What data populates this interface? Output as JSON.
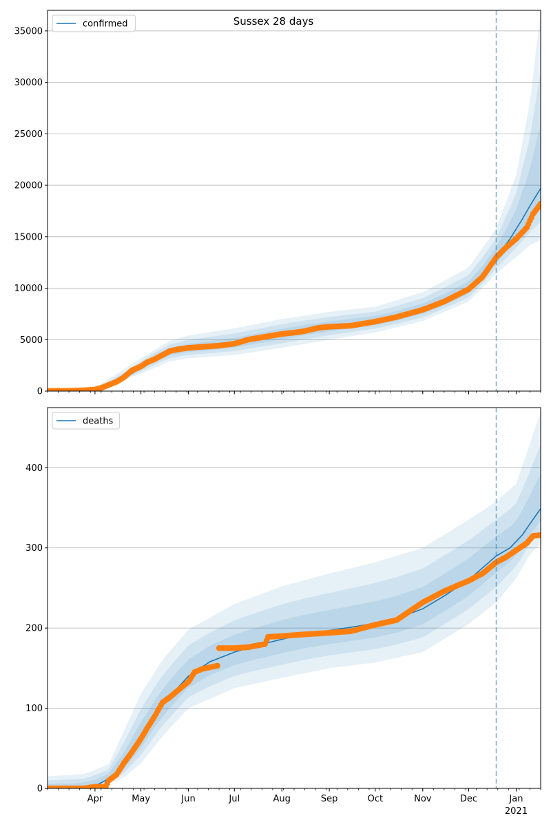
{
  "figure": {
    "title": "Sussex 28 days",
    "year_label": "2021"
  },
  "colors": {
    "model_line": "#1f77b4",
    "observed": "#ff7f0e",
    "band": "#1f77b4",
    "forecast_marker": "#1f77b4",
    "grid": "#b0b0b0"
  },
  "chart_data": [
    {
      "type": "line",
      "title": "",
      "legend": [
        "confirmed"
      ],
      "legend_position": "upper-left",
      "grid": "horizontal",
      "x_range": [
        "2020-03-01",
        "2021-01-17"
      ],
      "x_tick_labels": [
        "Apr",
        "May",
        "Jun",
        "Jul",
        "Aug",
        "Sep",
        "Oct",
        "Nov",
        "Dec",
        "Jan"
      ],
      "y_range": [
        0,
        37000
      ],
      "y_ticks": [
        0,
        5000,
        10000,
        15000,
        20000,
        25000,
        30000,
        35000
      ],
      "forecast_start": "2020-12-19",
      "series": [
        {
          "name": "confirmed",
          "style": "model-line",
          "x": [
            "2020-03-01",
            "2020-03-20",
            "2020-04-01",
            "2020-04-10",
            "2020-04-20",
            "2020-05-01",
            "2020-05-10",
            "2020-05-20",
            "2020-06-01",
            "2020-06-15",
            "2020-07-01",
            "2020-07-15",
            "2020-08-01",
            "2020-08-15",
            "2020-09-01",
            "2020-09-15",
            "2020-10-01",
            "2020-10-15",
            "2020-11-01",
            "2020-11-15",
            "2020-12-01",
            "2020-12-10",
            "2020-12-19",
            "2020-12-28",
            "2021-01-05",
            "2021-01-10",
            "2021-01-17"
          ],
          "y": [
            0,
            20,
            150,
            500,
            1200,
            2300,
            3200,
            3800,
            4150,
            4350,
            4650,
            5050,
            5500,
            5900,
            6250,
            6500,
            6800,
            7200,
            7900,
            8700,
            9900,
            11200,
            13000,
            14800,
            16700,
            18000,
            19700
          ]
        },
        {
          "name": "",
          "style": "observed-markers",
          "x": [
            "2020-03-01",
            "2020-03-15",
            "2020-03-25",
            "2020-04-01",
            "2020-04-05",
            "2020-04-10",
            "2020-04-15",
            "2020-04-20",
            "2020-04-25",
            "2020-05-01",
            "2020-05-05",
            "2020-05-10",
            "2020-05-15",
            "2020-05-20",
            "2020-05-25",
            "2020-06-01",
            "2020-06-10",
            "2020-06-20",
            "2020-07-01",
            "2020-07-10",
            "2020-07-20",
            "2020-08-01",
            "2020-08-10",
            "2020-08-15",
            "2020-08-25",
            "2020-09-01",
            "2020-09-15",
            "2020-10-01",
            "2020-10-15",
            "2020-11-01",
            "2020-11-15",
            "2020-12-01",
            "2020-12-10",
            "2020-12-19",
            "2020-12-25",
            "2021-01-01",
            "2021-01-08",
            "2021-01-12",
            "2021-01-17"
          ],
          "y": [
            20,
            30,
            80,
            150,
            300,
            600,
            900,
            1350,
            2000,
            2400,
            2800,
            3100,
            3500,
            3900,
            4050,
            4200,
            4300,
            4400,
            4600,
            5000,
            5250,
            5550,
            5700,
            5800,
            6150,
            6250,
            6350,
            6750,
            7200,
            7900,
            8700,
            9900,
            11100,
            13000,
            13900,
            14800,
            15900,
            17200,
            18200
          ]
        },
        {
          "name": "",
          "style": "uncertainty-band",
          "x": [
            "2020-03-01",
            "2020-04-01",
            "2020-05-01",
            "2020-05-20",
            "2020-06-01",
            "2020-07-01",
            "2020-08-01",
            "2020-09-01",
            "2020-10-01",
            "2020-11-01",
            "2020-12-01",
            "2020-12-19",
            "2021-01-01",
            "2021-01-10",
            "2021-01-17"
          ],
          "lower": [
            0,
            80,
            1700,
            2900,
            3200,
            3500,
            4200,
            5000,
            5700,
            6800,
            8700,
            11400,
            13000,
            14200,
            14700
          ],
          "upper": [
            0,
            300,
            3200,
            4900,
            5400,
            6100,
            7000,
            7700,
            8200,
            9600,
            12000,
            15800,
            21000,
            28000,
            37000
          ]
        }
      ]
    },
    {
      "type": "line",
      "title": "",
      "legend": [
        "deaths"
      ],
      "legend_position": "upper-left",
      "grid": "horizontal",
      "x_range": [
        "2020-03-01",
        "2021-01-17"
      ],
      "x_tick_labels": [
        "Apr",
        "May",
        "Jun",
        "Jul",
        "Aug",
        "Sep",
        "Oct",
        "Nov",
        "Dec",
        "Jan"
      ],
      "y_range": [
        0,
        475
      ],
      "y_ticks": [
        0,
        100,
        200,
        300,
        400
      ],
      "forecast_start": "2020-12-19",
      "series": [
        {
          "name": "deaths",
          "style": "model-line",
          "x": [
            "2020-03-01",
            "2020-03-20",
            "2020-04-01",
            "2020-04-10",
            "2020-04-20",
            "2020-05-01",
            "2020-05-10",
            "2020-05-20",
            "2020-06-01",
            "2020-06-15",
            "2020-07-01",
            "2020-07-15",
            "2020-08-01",
            "2020-08-15",
            "2020-09-01",
            "2020-09-15",
            "2020-10-01",
            "2020-10-15",
            "2020-11-01",
            "2020-11-15",
            "2020-12-01",
            "2020-12-10",
            "2020-12-19",
            "2020-12-28",
            "2021-01-05",
            "2021-01-10",
            "2021-01-17"
          ],
          "y": [
            0,
            0,
            3,
            12,
            30,
            62,
            90,
            115,
            140,
            158,
            170,
            178,
            186,
            192,
            197,
            201,
            206,
            212,
            224,
            240,
            260,
            275,
            290,
            300,
            316,
            330,
            349
          ]
        },
        {
          "name": "",
          "style": "observed-markers",
          "x": [
            "2020-03-01",
            "2020-03-15",
            "2020-03-25",
            "2020-04-01",
            "2020-04-08",
            "2020-04-10",
            "2020-04-15",
            "2020-04-20",
            "2020-04-25",
            "2020-05-01",
            "2020-05-05",
            "2020-05-10",
            "2020-05-15",
            "2020-05-20",
            "2020-05-25",
            "2020-06-01",
            "2020-06-05",
            "2020-06-10",
            "2020-06-15",
            "2020-06-20",
            "2020-06-21",
            "2020-07-01",
            "2020-07-10",
            "2020-07-15",
            "2020-07-21",
            "2020-07-23",
            "2020-08-01",
            "2020-08-15",
            "2020-09-01",
            "2020-09-15",
            "2020-10-01",
            "2020-10-15",
            "2020-11-01",
            "2020-11-15",
            "2020-12-01",
            "2020-12-10",
            "2020-12-19",
            "2020-12-25",
            "2021-01-01",
            "2021-01-08",
            "2021-01-12",
            "2021-01-17"
          ],
          "y": [
            0,
            0,
            0,
            2,
            2,
            10,
            17,
            32,
            45,
            62,
            75,
            90,
            107,
            114,
            122,
            133,
            145,
            149,
            151,
            153,
            175,
            175,
            176,
            178,
            180,
            189,
            190,
            192,
            194,
            196,
            204,
            210,
            232,
            246,
            259,
            268,
            282,
            288,
            297,
            306,
            315,
            316
          ]
        },
        {
          "name": "",
          "style": "uncertainty-band",
          "x": [
            "2020-03-01",
            "2020-03-25",
            "2020-04-10",
            "2020-04-20",
            "2020-05-01",
            "2020-05-15",
            "2020-06-01",
            "2020-07-01",
            "2020-08-01",
            "2020-09-01",
            "2020-10-01",
            "2020-11-01",
            "2020-12-01",
            "2020-12-19",
            "2021-01-01",
            "2021-01-10",
            "2021-01-17"
          ],
          "lower": [
            0,
            0,
            5,
            14,
            31,
            65,
            100,
            125,
            138,
            150,
            157,
            170,
            205,
            232,
            262,
            292,
            305
          ],
          "upper": [
            15,
            18,
            30,
            72,
            118,
            160,
            198,
            230,
            252,
            268,
            282,
            300,
            335,
            358,
            380,
            430,
            470
          ]
        }
      ]
    }
  ]
}
